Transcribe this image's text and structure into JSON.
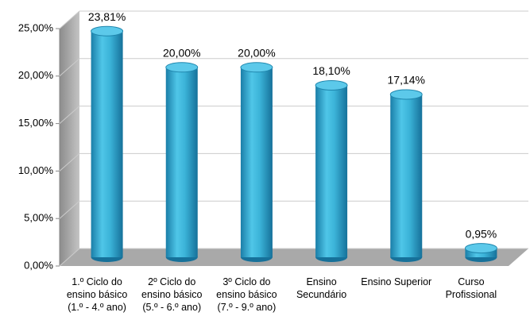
{
  "chart_data": {
    "type": "bar",
    "categories": [
      "1.º Ciclo do ensino básico (1.º - 4.º ano)",
      "2º Ciclo do ensino básico (5.º - 6.º ano)",
      "3º Ciclo do ensino básico (7.º - 9.º ano)",
      "Ensino Secundário",
      "Ensino Superior",
      "Curso Profissional"
    ],
    "values": [
      23.81,
      20.0,
      20.0,
      18.1,
      17.14,
      0.95
    ],
    "value_labels": [
      "23,81%",
      "20,00%",
      "20,00%",
      "18,10%",
      "17,14%",
      "0,95%"
    ],
    "color": "#3bb3d8",
    "ylim": [
      0,
      25
    ],
    "yticks": [
      {
        "value": 0,
        "label": "0,00%"
      },
      {
        "value": 5,
        "label": "5,00%"
      },
      {
        "value": 10,
        "label": "10,00%"
      },
      {
        "value": 15,
        "label": "15,00%"
      },
      {
        "value": 20,
        "label": "20,00%"
      },
      {
        "value": 25,
        "label": "25,00%"
      }
    ],
    "grid": true
  }
}
